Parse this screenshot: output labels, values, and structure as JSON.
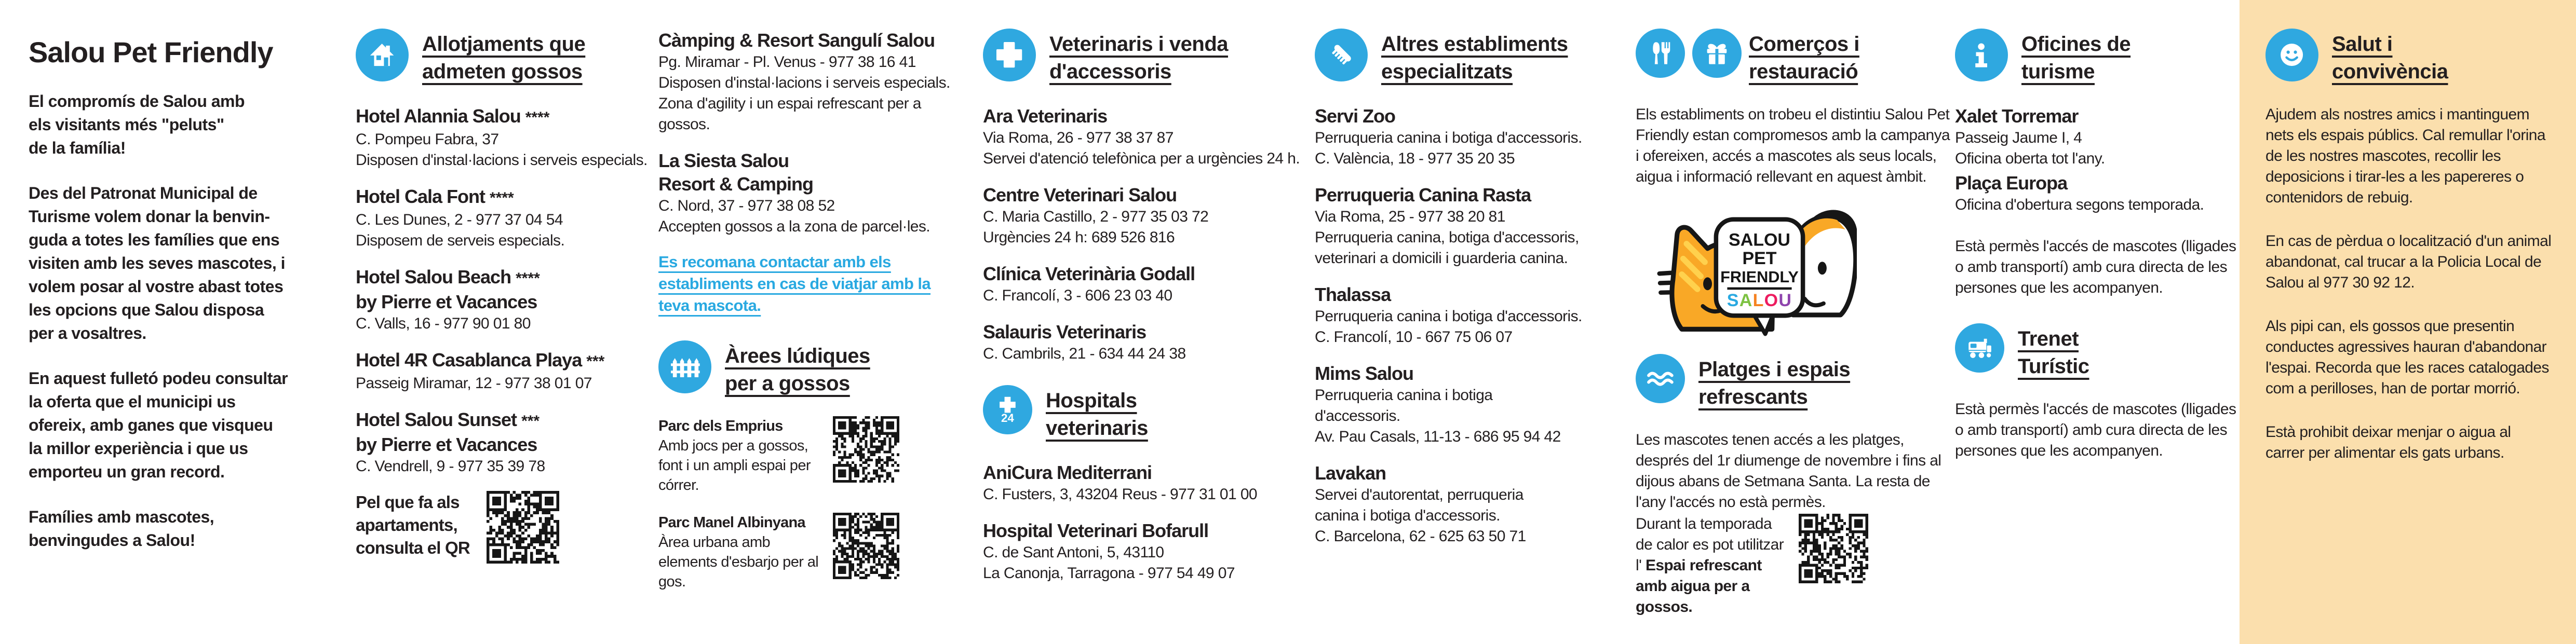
{
  "colors": {
    "accent_blue": "#2fa8e0",
    "link_blue": "#29a9e1",
    "text": "#231f20",
    "panel_orange": "#fbdfad",
    "logo_orange": "#f9a826",
    "logo_stripe": "#ffd14d"
  },
  "intro": {
    "title": "Salou Pet Friendly",
    "paragraphs": [
      "El compromís de Salou amb\nels visitants més \"peluts\"\nde la família!",
      "Des del Patronat Municipal de\nTurisme volem donar la benvin-\nguda a totes les famílies que ens\nvisiten amb les seves mascotes, i\nvolem posar al vostre abast totes\nles opcions que Salou disposa\nper a vosaltres.",
      "En aquest fulletó podeu consultar\nla oferta que el municipi us\nofereix, amb ganes que visqueu\nla millor experiència i que us\nemporteu un gran record.",
      "Famílies amb mascotes,\nbenvingudes a Salou!"
    ]
  },
  "allotjaments": {
    "icon": "house-icon",
    "heading": "Allotjaments que\nadmeten gossos",
    "entries": [
      {
        "name": "Hotel Alannia Salou",
        "stars": "****",
        "text": "C. Pompeu Fabra, 37\nDisposen d'instal·lacions i serveis especials."
      },
      {
        "name": "Hotel Cala Font",
        "stars": "****",
        "text": "C. Les Dunes, 2 - 977 37 04 54\nDisposem de serveis especials."
      },
      {
        "name": "Hotel Salou Beach",
        "stars": "****",
        "name2": "by Pierre et Vacances",
        "text": "C. Valls, 16 - 977 90 01 80"
      },
      {
        "name": "Hotel 4R Casablanca Playa",
        "stars": "***",
        "text": "Passeig Miramar, 12 - 977 38 01 07"
      },
      {
        "name": "Hotel Salou Sunset",
        "stars": "***",
        "name2": "by Pierre et Vacances",
        "text": "C. Vendrell, 9 - 977 35 39 78"
      }
    ],
    "apartments_note": "Pel que fa als\napartaments,\nconsulta el QR"
  },
  "campings": {
    "entries": [
      {
        "name": "Càmping & Resort Sangulí Salou",
        "text": "Pg. Miramar - Pl. Venus - 977 38 16 41\nDisposen d'instal·lacions i serveis especials.\nZona d'agility i un espai refrescant per a gossos."
      },
      {
        "name": "La Siesta Salou\nResort & Camping",
        "text": "C. Nord, 37 - 977 38 08 52\nAccepten gossos a la zona de parcel·les."
      }
    ],
    "advice": "Es recomana contactar amb els establiments en cas de viatjar amb la teva mascota."
  },
  "arees": {
    "icon": "fence-icon",
    "heading": "Àrees lúdiques\nper a gossos",
    "parks": [
      {
        "name": "Parc dels Emprius",
        "desc": "Amb jocs per a gossos, font i un ampli espai per córrer."
      },
      {
        "name": "Parc Manel Albinyana",
        "desc": "Àrea urbana amb elements d'esbarjo per al gos."
      }
    ]
  },
  "veterinaris": {
    "icon": "cross-icon",
    "heading": "Veterinaris i venda\nd'accessoris",
    "entries": [
      {
        "name": "Ara Veterinaris",
        "text": "Via Roma, 26 - 977 38 37 87\nServei d'atenció telefònica per a urgències 24 h."
      },
      {
        "name": "Centre Veterinari Salou",
        "text": "C. Maria Castillo, 2 - 977 35 03 72\nUrgències 24 h: 689 526 816"
      },
      {
        "name": "Clínica Veterinària Godall",
        "text": "C. Francolí, 3 - 606 23 03 40"
      },
      {
        "name": "Salauris Veterinaris",
        "text": "C. Cambrils, 21 - 634 44 24 38"
      }
    ]
  },
  "hospitals": {
    "icon": "cross-24-icon",
    "heading": "Hospitals\nveterinaris",
    "entries": [
      {
        "name": "AniCura Mediterrani",
        "text": "C. Fusters, 3, 43204 Reus - 977 31 01 00"
      },
      {
        "name": "Hospital Veterinari Bofarull",
        "text": "C. de Sant Antoni, 5, 43110\nLa Canonja, Tarragona - 977 54 49 07"
      }
    ]
  },
  "altres": {
    "icon": "comb-icon",
    "heading": "Altres establiments\nespecialitzats",
    "entries": [
      {
        "name": "Servi Zoo",
        "text": "Perruqueria canina i botiga d'accessoris.\nC. València, 18 - 977 35 20 35"
      },
      {
        "name": "Perruqueria Canina Rasta",
        "text": "Via Roma, 25 - 977 38 20 81\nPerruqueria canina, botiga d'accessoris,\nveterinari a domicili i guarderia canina."
      },
      {
        "name": "Thalassa",
        "text": "Perruqueria canina i botiga d'accessoris.\nC. Francolí, 10 - 667 75 06 07"
      },
      {
        "name": "Mims Salou",
        "text": "Perruqueria canina i botiga\nd'accessoris.\nAv. Pau Casals, 11-13 - 686 95 94 42"
      },
      {
        "name": "Lavakan",
        "text": "Servei d'autorentat, perruqueria\ncanina i botiga d'accessoris.\nC. Barcelona, 62 - 625 63 50 71"
      }
    ]
  },
  "comercos": {
    "icons": [
      "restaurant-icon",
      "gift-icon"
    ],
    "heading": "Comerços i\nrestauració",
    "paragraph": "Els establiments on trobeu el distintiu Salou Pet Friendly estan compromesos amb la campanya i ofereixen, accés a mascotes als seus locals, aigua i informació rellevant en aquest àmbit."
  },
  "logo": {
    "line1": "SALOU",
    "line2": "PET",
    "line3": "FRIENDLY",
    "brand_letters": [
      "S",
      "A",
      "L",
      "O",
      "U"
    ],
    "brand_colors": [
      "#29a9e1",
      "#7dc242",
      "#f58220",
      "#ed1c5f",
      "#8e44ad"
    ]
  },
  "platges": {
    "icon": "waves-icon",
    "heading": "Platges i espais\nrefrescants",
    "text1": "Les mascotes tenen accés a les platges, després del 1r diumenge de novembre i fins al dijous abans de Setmana Santa. La resta de l'any l'accés no està permès.",
    "text2_pre": "Durant la temporada de calor es pot utilitzar l' ",
    "text2_bold": "Espai refrescant amb aigua per a gossos."
  },
  "oficines": {
    "icon": "info-icon",
    "heading": "Oficines de\nturisme",
    "entries": [
      {
        "name": "Xalet Torremar",
        "text": "Passeig Jaume I, 4\nOficina oberta tot l'any."
      },
      {
        "name": "Plaça Europa",
        "text": "Oficina d'obertura segons temporada."
      }
    ],
    "note": "Està permès l'accés de mascotes (lligades o amb transportí) amb cura directa de les persones que les acompanyen."
  },
  "trenet": {
    "icon": "train-icon",
    "heading": "Trenet\nTurístic",
    "note": "Està permès l'accés de mascotes (lligades o amb transportí) amb cura directa de les persones que les acompanyen."
  },
  "salut": {
    "icon": "smiley-icon",
    "heading": "Salut i\nconvivència",
    "paragraphs": [
      "Ajudem als nostres amics i mantinguem nets els espais públics. Cal remullar l'orina de les nostres mascotes, recollir les deposicions i tirar-les a les papereres o contenidors de rebuig.",
      "En cas de pèrdua o localització d'un animal abandonat, cal trucar a la Policia Local de Salou al 977 30 92 12.",
      "Als pipi can, els gossos que presentin conductes agressives hauran d'abandonar l'espai. Recorda que les races catalogades com a perilloses, han de portar morrió.",
      "Està prohibit deixar menjar o aigua al carrer per alimentar els gats urbans."
    ]
  }
}
